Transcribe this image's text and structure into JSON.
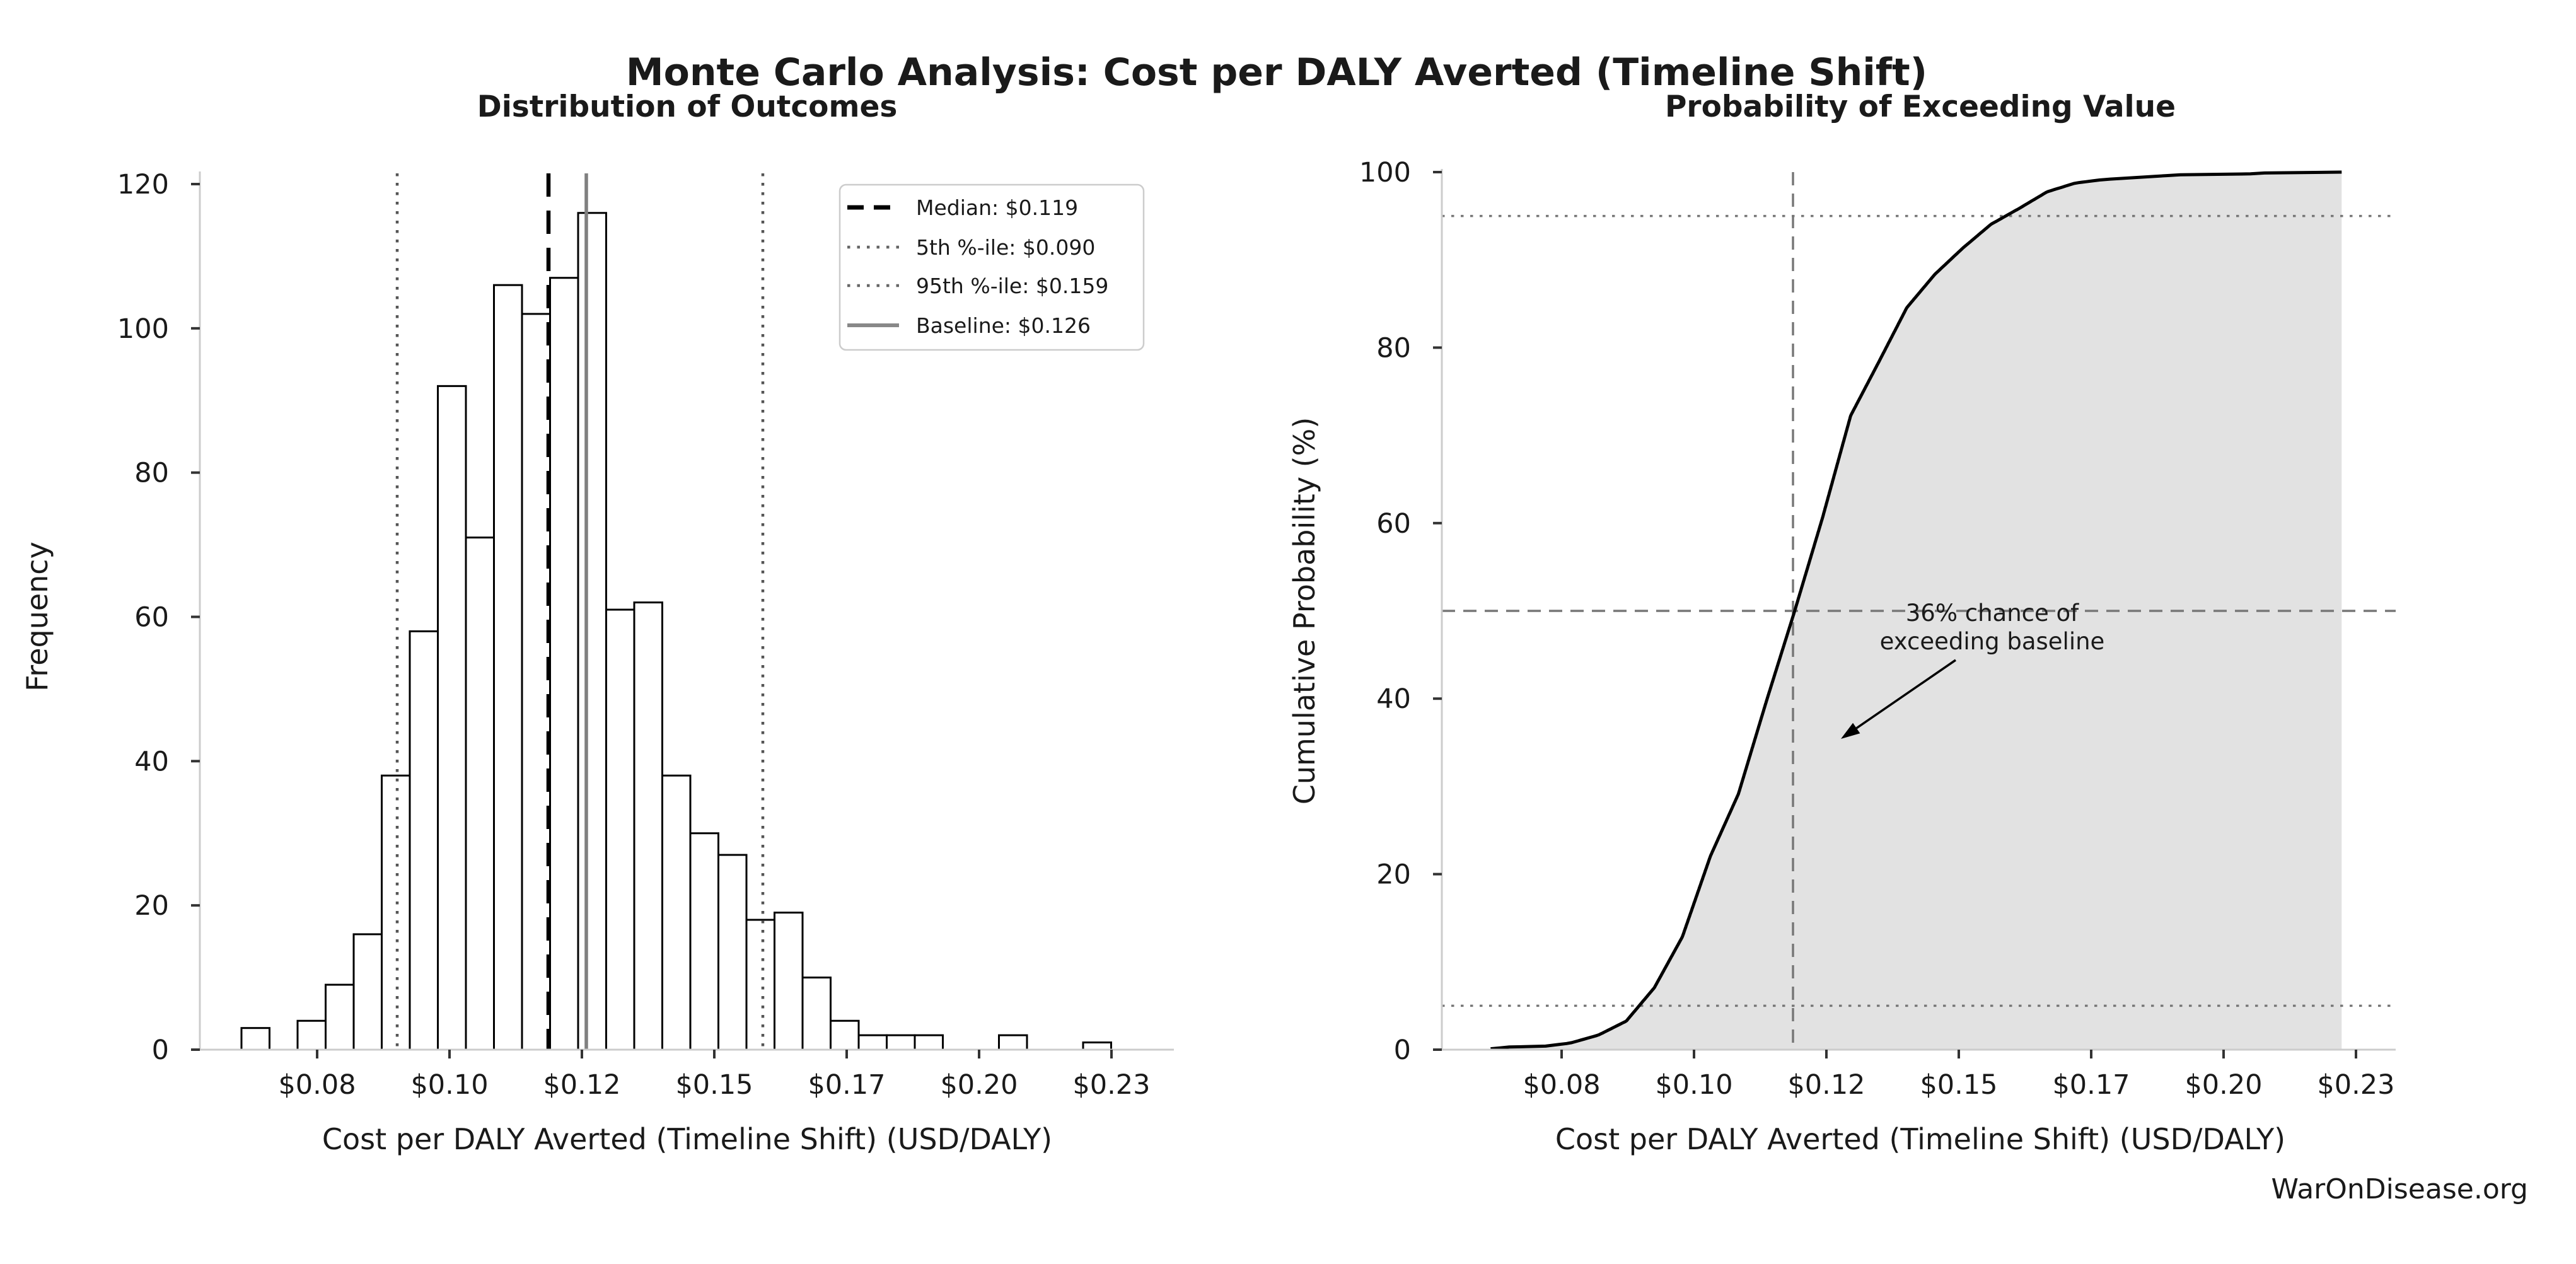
{
  "suptitle": "Monte Carlo Analysis: Cost per DALY Averted (Timeline Shift)",
  "watermark": "WarOnDisease.org",
  "colors": {
    "bar_edge": "#000000",
    "bar_fill": "#ffffff",
    "spine": "#cccccc",
    "tick": "#333333",
    "median_line": "#000000",
    "percentile_line": "#555555",
    "baseline_line": "#808080",
    "cdf_line": "#000000",
    "cdf_fill": "rgba(0,0,0,0.115)",
    "ref_gray": "#777777",
    "watermark": "#444444"
  },
  "chart_data": [
    {
      "type": "bar",
      "title": "Distribution of Outcomes",
      "xlabel": "Cost per DALY Averted (Timeline Shift) (USD/DALY)",
      "ylabel": "Frequency",
      "x_tick_labels": [
        "$0.08",
        "$0.10",
        "$0.12",
        "$0.15",
        "$0.17",
        "$0.20",
        "$0.23"
      ],
      "x_tick_units": [
        2.697,
        7.416,
        12.135,
        16.854,
        21.573,
        26.292,
        31.011
      ],
      "y_ticks": [
        0,
        20,
        40,
        60,
        80,
        100,
        120
      ],
      "ylim": [
        0,
        121.8
      ],
      "n_samples": 1000,
      "bin_counts": [
        3,
        0,
        4,
        9,
        16,
        38,
        58,
        92,
        71,
        106,
        102,
        107,
        116,
        61,
        62,
        38,
        30,
        27,
        18,
        19,
        10,
        4,
        2,
        2,
        2,
        0,
        0,
        2,
        0,
        0,
        1
      ],
      "ref_lines": [
        {
          "name": "median",
          "legend_label": "Median: $0.119",
          "value": "$0.119",
          "style": "dashed",
          "color": "#000000",
          "x_units": 10.944
        },
        {
          "name": "p5",
          "legend_label": "5th %-ile: $0.090",
          "value": "$0.090",
          "style": "dotted",
          "color": "#555555",
          "x_units": 5.551
        },
        {
          "name": "p95",
          "legend_label": "95th %-ile: $0.159",
          "value": "$0.159",
          "style": "dotted",
          "color": "#555555",
          "x_units": 18.584
        },
        {
          "name": "baseline",
          "legend_label": "Baseline: $0.126",
          "value": "$0.126",
          "style": "solid",
          "color": "#808080",
          "x_units": 12.292
        }
      ],
      "legend_order": [
        "median",
        "p5",
        "p95",
        "baseline"
      ]
    },
    {
      "type": "line",
      "title": "Probability of Exceeding Value",
      "xlabel": "Cost per DALY Averted (Timeline Shift) (USD/DALY)",
      "ylabel": "Cumulative Probability (%)",
      "x_tick_labels": [
        "$0.08",
        "$0.10",
        "$0.12",
        "$0.15",
        "$0.17",
        "$0.20",
        "$0.23"
      ],
      "x_tick_units": [
        2.697,
        7.416,
        12.135,
        16.854,
        21.573,
        26.292,
        31.011
      ],
      "y_ticks": [
        0,
        20,
        40,
        60,
        80,
        100
      ],
      "ylim": [
        0,
        100.4
      ],
      "h_lines": [
        {
          "y": 5,
          "style": "dotted"
        },
        {
          "y": 50,
          "style": "dashed"
        },
        {
          "y": 95,
          "style": "dotted"
        }
      ],
      "v_line": {
        "x_units": 10.944,
        "style": "dashed"
      },
      "annotation": {
        "line1": "36% chance of",
        "line2": "exceeding baseline"
      }
    }
  ]
}
